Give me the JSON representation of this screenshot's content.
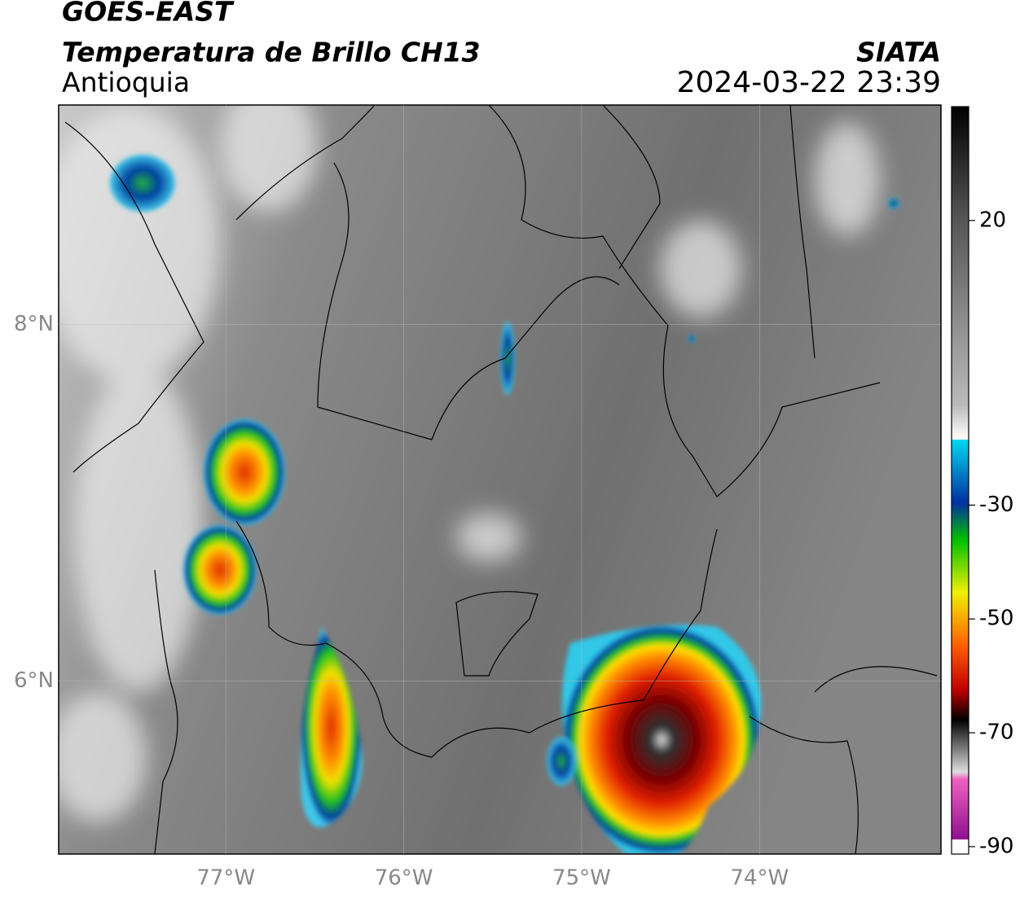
{
  "header": {
    "satellite": "GOES-EAST",
    "product": "Temperatura de Brillo CH13",
    "region": "Antioquia",
    "source": "SIATA",
    "datetime": "2024-03-22 23:39"
  },
  "map": {
    "xlim": [
      -77.94,
      -72.98
    ],
    "ylim": [
      5.03,
      9.23
    ],
    "xticks": [
      {
        "value": -77,
        "label": "77°W"
      },
      {
        "value": -76,
        "label": "76°W"
      },
      {
        "value": -75,
        "label": "75°W"
      },
      {
        "value": -74,
        "label": "74°W"
      }
    ],
    "yticks": [
      {
        "value": 8,
        "label": "8°N"
      },
      {
        "value": 6,
        "label": "6°N"
      }
    ]
  },
  "colorbar": {
    "lim": [
      -91.3,
      40
    ],
    "ticks": [
      20,
      -30,
      -50,
      -70,
      -90
    ]
  }
}
